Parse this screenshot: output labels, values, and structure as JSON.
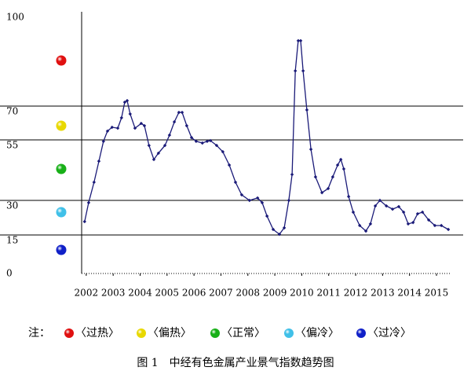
{
  "chart_data": {
    "type": "line",
    "caption": "图 1　中经有色金属产业景气指数趋势图",
    "x": [
      2001.94,
      2002.09,
      2002.29,
      2002.47,
      2002.64,
      2002.79,
      2002.96,
      2003.17,
      2003.31,
      2003.43,
      2003.52,
      2003.63,
      2003.81,
      2004.04,
      2004.16,
      2004.33,
      2004.51,
      2004.68,
      2004.92,
      2005.09,
      2005.27,
      2005.44,
      2005.56,
      2005.73,
      2005.91,
      2006.08,
      2006.31,
      2006.49,
      2006.61,
      2006.84,
      2007.07,
      2007.31,
      2007.54,
      2007.77,
      2008.06,
      2008.36,
      2008.53,
      2008.71,
      2008.94,
      2009.17,
      2009.35,
      2009.52,
      2009.64,
      2009.76,
      2009.87,
      2009.96,
      2010.05,
      2010.19,
      2010.34,
      2010.51,
      2010.75,
      2010.98,
      2011.15,
      2011.33,
      2011.45,
      2011.56,
      2011.74,
      2011.91,
      2012.15,
      2012.38,
      2012.55,
      2012.73,
      2012.9,
      2013.14,
      2013.37,
      2013.6,
      2013.78,
      2013.95,
      2014.13,
      2014.3,
      2014.48,
      2014.71,
      2014.94,
      2015.18,
      2015.44
    ],
    "series": [
      {
        "color": "#1a1a78",
        "values": [
          20.8,
          29.0,
          37.5,
          46.2,
          54.4,
          58.9,
          60.6,
          60.2,
          64.8,
          71.3,
          71.8,
          66.5,
          60.2,
          62.3,
          61.3,
          52.7,
          46.9,
          49.5,
          52.7,
          57.1,
          63.0,
          67.2,
          67.2,
          61.3,
          56.0,
          54.4,
          53.7,
          54.4,
          54.7,
          52.7,
          50.1,
          44.6,
          37.5,
          32.3,
          30.0,
          31.0,
          29.0,
          23.2,
          17.4,
          15.3,
          18.1,
          30.0,
          40.7,
          81.7,
          91.7,
          91.7,
          81.7,
          68.3,
          51.1,
          39.7,
          33.2,
          34.9,
          39.7,
          44.6,
          46.9,
          43.0,
          31.6,
          24.9,
          19.1,
          16.7,
          19.8,
          27.6,
          30.0,
          27.6,
          26.2,
          27.3,
          24.9,
          19.8,
          20.4,
          24.2,
          24.9,
          21.5,
          19.1,
          19.1,
          17.4
        ]
      }
    ],
    "xlim": [
      2001.83,
      2015.99
    ],
    "xticks": [
      2002,
      2003,
      2004,
      2005,
      2006,
      2007,
      2008,
      2009,
      2010,
      2011,
      2012,
      2013,
      2014,
      2015
    ],
    "ylim": [
      0,
      100
    ],
    "yticks": [
      0,
      15,
      30,
      55,
      70,
      100
    ],
    "grid": true,
    "legend": {
      "label": "注：",
      "items": [
        {
          "name": "〈过热〉",
          "color": "#e01010"
        },
        {
          "name": "〈偏热〉",
          "color": "#e8d800"
        },
        {
          "name": "〈正常〉",
          "color": "#18b018"
        },
        {
          "name": "〈偏冷〉",
          "color": "#40c0e8"
        },
        {
          "name": "〈过冷〉",
          "color": "#1020c8"
        }
      ]
    }
  }
}
